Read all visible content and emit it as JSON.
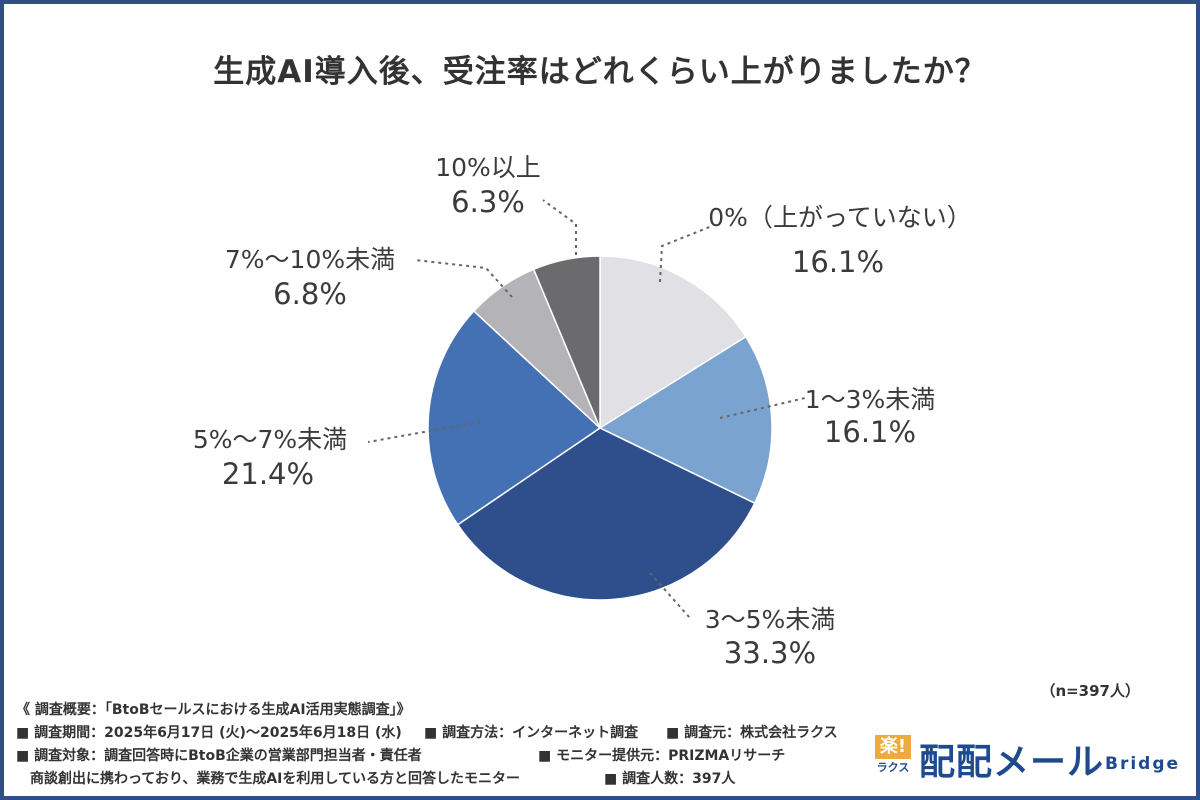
{
  "chart_data": {
    "type": "pie",
    "title": "生成AI導入後、受注率はどれくらい上がりましたか？",
    "slices": [
      {
        "label": "0%（上がっていない）",
        "value": 16.1,
        "value_label": "16.1%",
        "color": "#e1e0e5"
      },
      {
        "label": "1～3%未満",
        "value": 16.1,
        "value_label": "16.1%",
        "color": "#7aa3cf"
      },
      {
        "label": "3～5%未満",
        "value": 33.3,
        "value_label": "33.3%",
        "color": "#2f4f8c"
      },
      {
        "label": "5%～7%未満",
        "value": 21.4,
        "value_label": "21.4%",
        "color": "#4471b3"
      },
      {
        "label": "7%～10%未満",
        "value": 6.8,
        "value_label": "6.8%",
        "color": "#b4b3b8"
      },
      {
        "label": "10%以上",
        "value": 6.3,
        "value_label": "6.3%",
        "color": "#6b6b6e"
      }
    ],
    "sample_size": "（n=397人）"
  },
  "footer": {
    "line1": "《 調査概要：「BtoBセールスにおける生成AI活用実態調査」》",
    "period": "■ 調査期間：2025年6月17日 (火)～2025年6月18日 (水)",
    "method": "■ 調査方法：インターネット調査",
    "source": "■ 調査元：株式会社ラクス",
    "target": "■ 調査対象：調査回答時にBtoB企業の営業部門担当者・責任者",
    "monitor": "■ モニター提供元：PRIZMAリサーチ",
    "target2": "商談創出に携わっており、業務で生成AIを利用している方と回答したモニター",
    "count": "■ 調査人数：397人"
  },
  "logo": {
    "mark_top": "楽!",
    "mark_bottom": "ラクス",
    "name": "配配メール",
    "sub": "Bridge"
  }
}
